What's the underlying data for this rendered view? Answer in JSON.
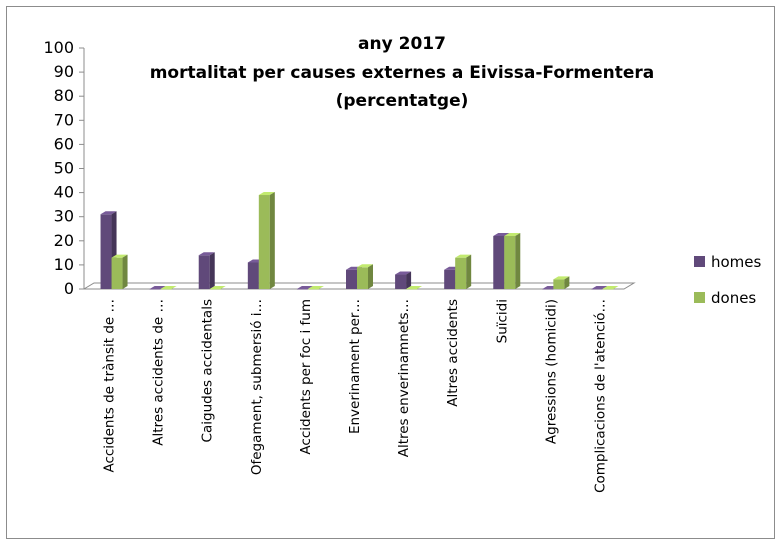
{
  "chart_data": {
    "type": "bar",
    "title_lines": [
      "any 2017",
      "mortalitat per causes externes a Eivissa-Formentera",
      "(percentatge)"
    ],
    "xlabel": "",
    "ylabel": "",
    "ylim": [
      0,
      100
    ],
    "y_ticks": [
      "100",
      "90",
      "80",
      "70",
      "60",
      "50",
      "40",
      "30",
      "20",
      "10",
      "0"
    ],
    "categories": [
      "Accidents de trànsit de …",
      "Altres accidents de …",
      "Caigudes accidentals",
      "Ofegament, submersió i…",
      "Accidents per foc i fum",
      "Enverinament per…",
      "Altres enverinamnets…",
      "Altres accidents",
      "Suïcidi",
      "Agressions (homicidi)",
      "Complicacions de l'atenció…"
    ],
    "series": [
      {
        "name": "homes",
        "color": "#60497a",
        "values": [
          31,
          0,
          14,
          11,
          0,
          8,
          6,
          8,
          22,
          0,
          0
        ]
      },
      {
        "name": "dones",
        "color": "#9bbb59",
        "values": [
          13,
          0,
          0,
          39,
          0,
          9,
          0,
          13,
          22,
          4,
          0
        ]
      }
    ],
    "legend_position": "right",
    "grid": false
  }
}
